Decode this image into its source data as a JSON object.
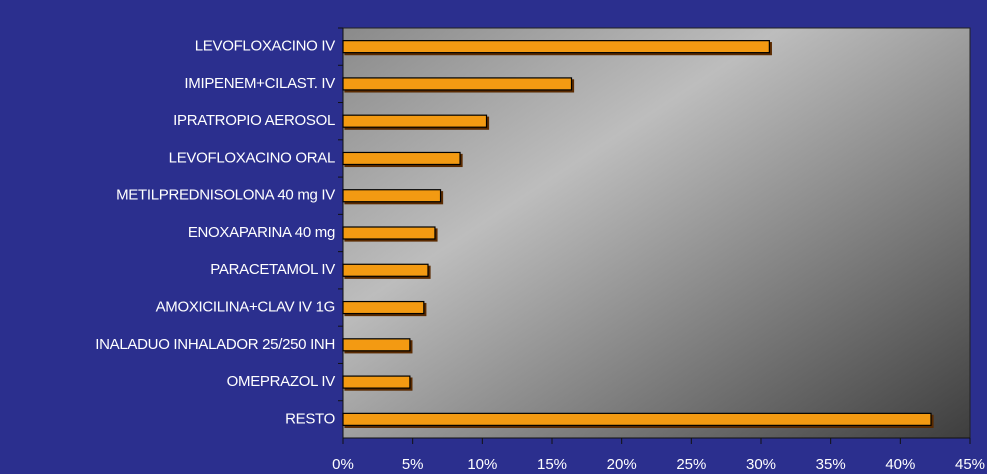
{
  "chart_data": {
    "type": "bar",
    "orientation": "horizontal",
    "categories": [
      "LEVOFLOXACINO IV",
      "IMIPENEM+CILAST. IV",
      "IPRATROPIO AEROSOL",
      "LEVOFLOXACINO ORAL",
      "METILPREDNISOLONA 40 mg IV",
      "ENOXAPARINA 40 mg",
      "PARACETAMOL IV",
      "AMOXICILINA+CLAV IV 1G",
      "INALADUO INHALADOR 25/250 INH",
      "OMEPRAZOL IV",
      "RESTO"
    ],
    "values": [
      30.6,
      16.4,
      10.3,
      8.4,
      7.0,
      6.6,
      6.1,
      5.8,
      4.8,
      4.8,
      42.2
    ],
    "color": "#f39a12",
    "xlim": [
      0,
      45
    ],
    "xticks": [
      {
        "value": 0,
        "label": "0%"
      },
      {
        "value": 5,
        "label": "5%"
      },
      {
        "value": 10,
        "label": "10%"
      },
      {
        "value": 15,
        "label": "15%"
      },
      {
        "value": 20,
        "label": "20%"
      },
      {
        "value": 25,
        "label": "25%"
      },
      {
        "value": 30,
        "label": "30%"
      },
      {
        "value": 35,
        "label": "35%"
      },
      {
        "value": 40,
        "label": "40%"
      },
      {
        "value": 45,
        "label": "45%"
      }
    ]
  }
}
